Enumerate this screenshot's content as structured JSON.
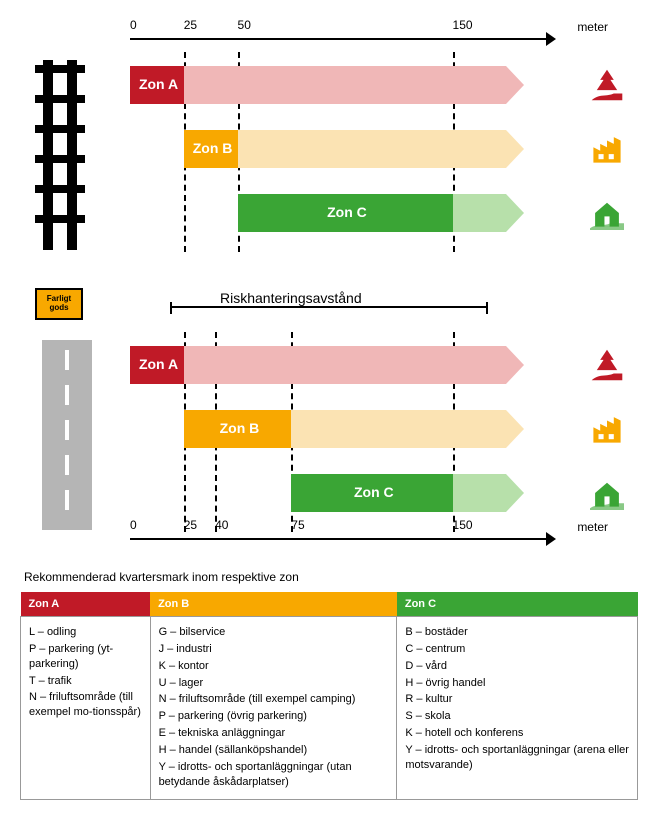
{
  "colors": {
    "zonA_dark": "#c01a27",
    "zonA_light": "#f0b7b7",
    "zonB_dark": "#f8a800",
    "zonB_light": "#fbe3b3",
    "zonC_dark": "#3aa535",
    "zonC_light": "#b7e0aa",
    "rail": "#000000",
    "road": "#b5b5b5"
  },
  "axis_top": {
    "ticks": [
      {
        "value": 0,
        "label": "0",
        "pos_pct": 0
      },
      {
        "value": 25,
        "label": "25",
        "pos_pct": 12
      },
      {
        "value": 50,
        "label": "50",
        "pos_pct": 24
      },
      {
        "value": 150,
        "label": "150",
        "pos_pct": 72
      }
    ],
    "unit": "meter"
  },
  "axis_bottom": {
    "ticks": [
      {
        "value": 0,
        "label": "0",
        "pos_pct": 0
      },
      {
        "value": 25,
        "label": "25",
        "pos_pct": 12
      },
      {
        "value": 40,
        "label": "40",
        "pos_pct": 19
      },
      {
        "value": 75,
        "label": "75",
        "pos_pct": 36
      },
      {
        "value": 150,
        "label": "150",
        "pos_pct": 72
      }
    ],
    "unit": "meter"
  },
  "chart_top": {
    "rows": [
      {
        "name": "Zon A",
        "label": "Zon A",
        "dark_start": 0,
        "dark_end": 12,
        "light_start": 12,
        "light_end": 84,
        "color_dark": "#c01a27",
        "color_light": "#f0b7b7",
        "icon": "tree"
      },
      {
        "name": "Zon B",
        "label": "Zon B",
        "dark_start": 12,
        "dark_end": 24,
        "light_start": 24,
        "light_end": 84,
        "color_dark": "#f8a800",
        "color_light": "#fbe3b3",
        "icon": "factory"
      },
      {
        "name": "Zon C",
        "label": "Zon C",
        "dark_start": 24,
        "dark_end": 72,
        "light_start": 72,
        "light_end": 84,
        "color_dark": "#3aa535",
        "color_light": "#b7e0aa",
        "icon": "house"
      }
    ],
    "vlines_pct": [
      12,
      24,
      72
    ]
  },
  "chart_bottom": {
    "rows": [
      {
        "name": "Zon A",
        "label": "Zon A",
        "dark_start": 0,
        "dark_end": 12,
        "light_start": 12,
        "light_end": 84,
        "color_dark": "#c01a27",
        "color_light": "#f0b7b7",
        "icon": "tree"
      },
      {
        "name": "Zon B",
        "label": "Zon B",
        "dark_start": 12,
        "dark_end": 36,
        "light_start": 36,
        "light_end": 84,
        "color_dark": "#f8a800",
        "color_light": "#fbe3b3",
        "icon": "factory"
      },
      {
        "name": "Zon C",
        "label": "Zon C",
        "dark_start": 36,
        "dark_end": 72,
        "light_start": 72,
        "light_end": 84,
        "color_dark": "#3aa535",
        "color_light": "#b7e0aa",
        "icon": "house"
      }
    ],
    "vlines_pct": [
      12,
      19,
      36,
      72
    ]
  },
  "sign": {
    "line1": "Farligt",
    "line2": "gods"
  },
  "risk_label": "Riskhanteringsavstånd",
  "table": {
    "title": "Rekommenderad kvartersmark inom respektive zon",
    "cols": [
      {
        "header": "Zon A",
        "color": "#c01a27",
        "width": "21%",
        "items": [
          "L – odling",
          "P – parkering (yt-parkering)",
          "T – trafik",
          "N – friluftsområde (till exempel mo-tionsspår)"
        ]
      },
      {
        "header": "Zon B",
        "color": "#f8a800",
        "width": "40%",
        "items": [
          "G – bilservice",
          "J – industri",
          "K – kontor",
          "U – lager",
          "N – friluftsområde (till exempel camping)",
          "P – parkering (övrig parkering)",
          "E – tekniska anläggningar",
          "H – handel (sällanköpshandel)",
          "Y – idrotts- och sportanläggningar (utan betydande åskådarplatser)"
        ]
      },
      {
        "header": "Zon C",
        "color": "#3aa535",
        "width": "39%",
        "items": [
          "B – bostäder",
          "C – centrum",
          "D – vård",
          "H – övrig handel",
          "R – kultur",
          "S – skola",
          "K – hotell och konferens",
          "Y – idrotts- och sportanläggningar (arena eller motsvarande)"
        ]
      }
    ]
  }
}
